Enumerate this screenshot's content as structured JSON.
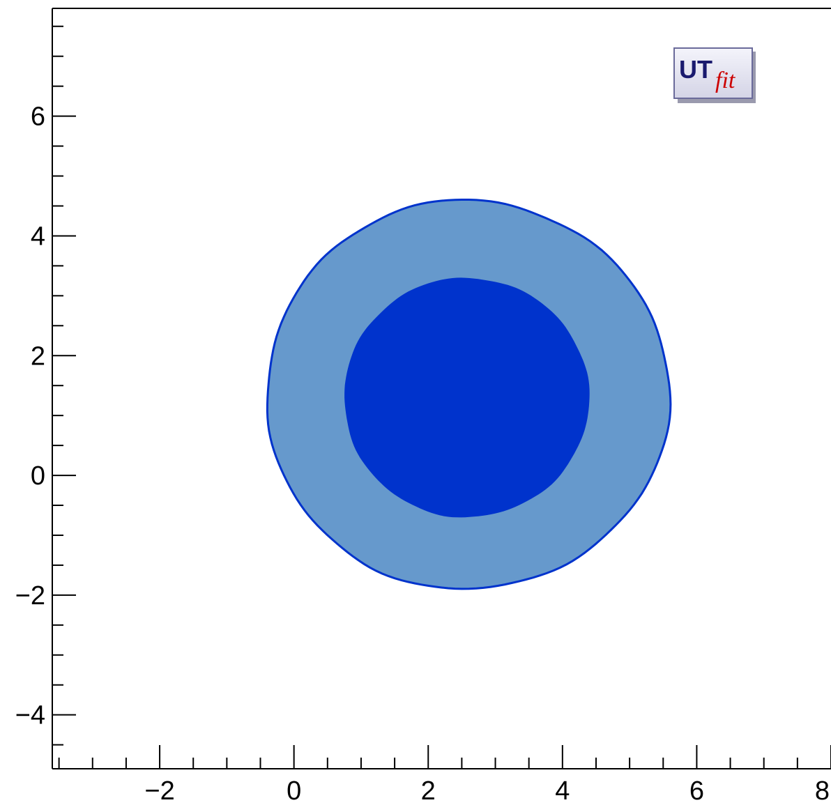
{
  "chart_data": {
    "type": "contour",
    "title": "",
    "xlabel": "",
    "ylabel": "",
    "xlim": [
      -3.6,
      8.0
    ],
    "ylim": [
      -4.9,
      7.8
    ],
    "x_tick_labels": [
      "−2",
      "0",
      "2",
      "4",
      "6",
      "8"
    ],
    "x_ticks": [
      -2,
      0,
      2,
      4,
      6,
      8
    ],
    "y_tick_labels": [
      "−4",
      "−2",
      "0",
      "2",
      "4",
      "6"
    ],
    "y_ticks": [
      -4,
      -2,
      0,
      2,
      4,
      6
    ],
    "minor_tick_step": 0.5,
    "grid": false,
    "regions": [
      {
        "name": "outer",
        "color": "#6699cc",
        "edge_color": "#0033cc",
        "center": [
          2.5,
          1.3
        ],
        "extent_x": [
          -0.4,
          5.6
        ],
        "extent_y": [
          -1.9,
          4.6
        ]
      },
      {
        "name": "inner",
        "color": "#0033cc",
        "center": [
          2.55,
          1.3
        ],
        "extent_x": [
          0.75,
          4.4
        ],
        "extent_y": [
          -0.7,
          3.3
        ]
      }
    ]
  },
  "logo": {
    "text_ut": "UT",
    "text_fit": "fit",
    "colors": {
      "ut": "#1a1a6e",
      "fit": "#cc0000",
      "bg": "#e8e8f4",
      "border": "#6a6a9a"
    }
  }
}
